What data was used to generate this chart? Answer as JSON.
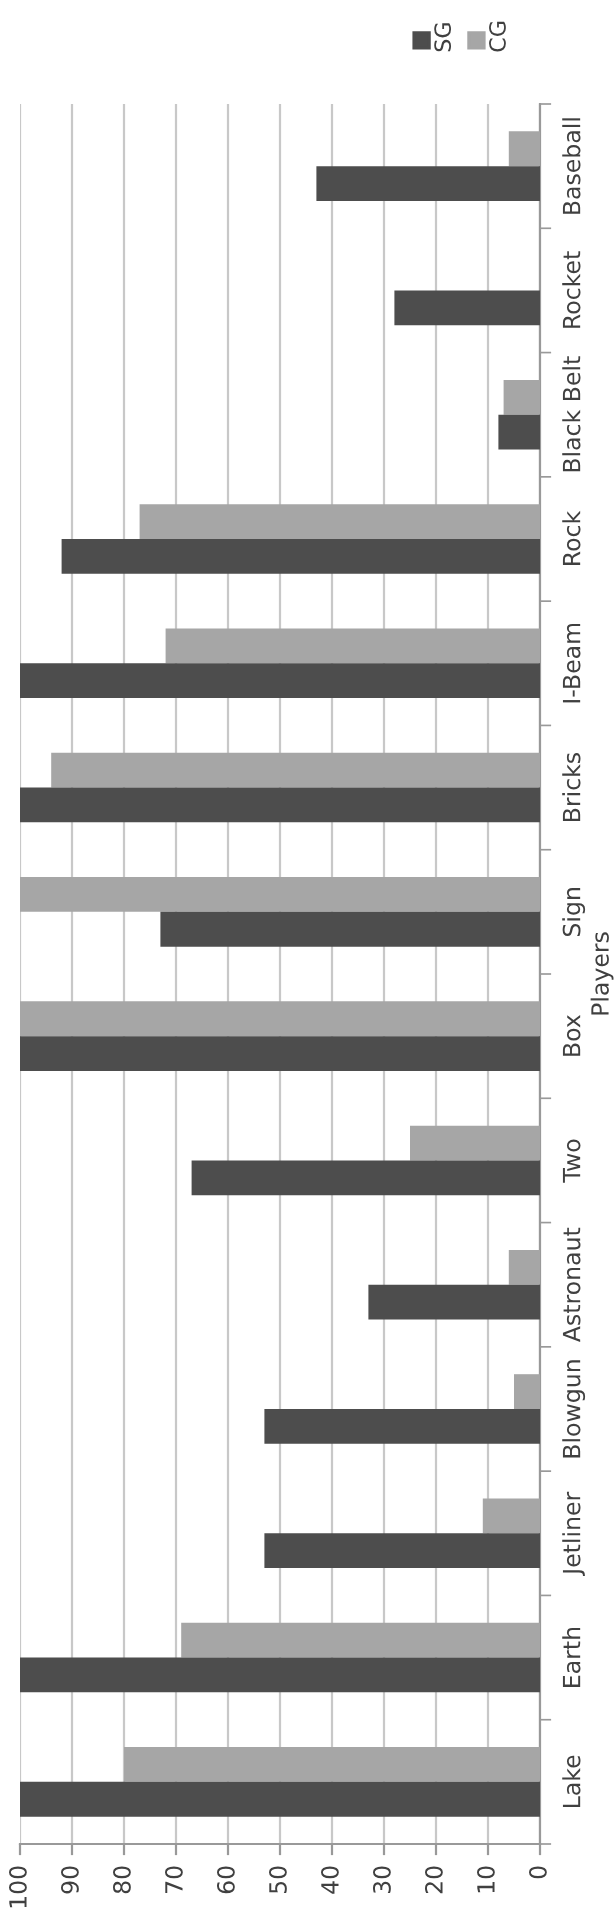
{
  "chart_data": {
    "type": "bar",
    "orientation": "horizontal",
    "ylabel": "Players",
    "categories": [
      "Baseball",
      "Rocket",
      "Black Belt",
      "Rock",
      "I-Beam",
      "Bricks",
      "Sign",
      "Box",
      "Two",
      "Astronaut",
      "Blowgun",
      "Jetliner",
      "Earth",
      "Lake"
    ],
    "series": [
      {
        "name": "CG",
        "color": "#a6a6a6",
        "values": [
          6,
          0,
          7,
          77,
          72,
          94,
          100,
          100,
          25,
          6,
          5,
          11,
          69,
          80
        ]
      },
      {
        "name": "SG",
        "color": "#4d4d4d",
        "values": [
          43,
          28,
          8,
          92,
          100,
          100,
          73,
          100,
          67,
          33,
          53,
          53,
          100,
          100
        ]
      }
    ],
    "xlim": [
      100,
      0
    ],
    "xticks": [
      100,
      90,
      80,
      70,
      60,
      50,
      40,
      30,
      20,
      10,
      0
    ],
    "grid": "x",
    "legend": "top right"
  }
}
